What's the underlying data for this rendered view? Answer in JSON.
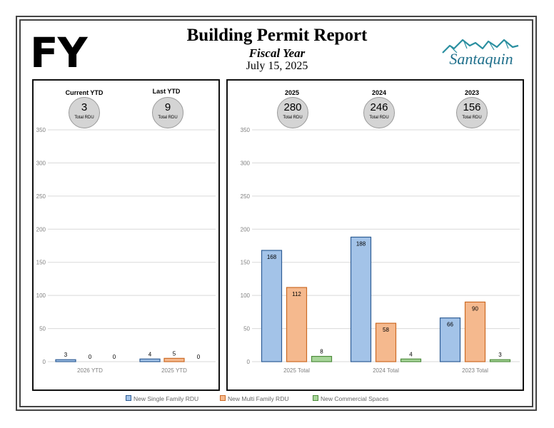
{
  "header": {
    "badge": "FY",
    "title": "Building Permit Report",
    "subtitle": "Fiscal Year",
    "date": "July 15, 2025",
    "logo_text": "Santaquin"
  },
  "summary_left": [
    {
      "label": "Current YTD",
      "value": "3",
      "caption": "Total RDU"
    },
    {
      "label": "Last YTD",
      "value": "9",
      "caption": "Total RDU"
    }
  ],
  "summary_right": [
    {
      "label": "2025",
      "value": "280",
      "caption": "Total RDU"
    },
    {
      "label": "2024",
      "value": "246",
      "caption": "Total RDU"
    },
    {
      "label": "2023",
      "value": "156",
      "caption": "Total RDU"
    }
  ],
  "colors": {
    "single_fill": "#a3c3e8",
    "single_stroke": "#2e5d95",
    "multi_fill": "#f5b98e",
    "multi_stroke": "#cc6a24",
    "commercial_fill": "#a8d69a",
    "commercial_stroke": "#4e8c3c",
    "grid": "#d9d9d9",
    "tick": "#7f7f7f"
  },
  "chart_data": [
    {
      "type": "bar",
      "categories": [
        "2026 YTD",
        "2025 YTD"
      ],
      "series": [
        {
          "name": "New Single Family RDU",
          "values": [
            3,
            4
          ]
        },
        {
          "name": "New Multi Family RDU",
          "values": [
            0,
            5
          ]
        },
        {
          "name": "New Commercial Spaces",
          "values": [
            0,
            0
          ]
        }
      ],
      "ylim": [
        0,
        350
      ],
      "yticks": [
        0,
        50,
        100,
        150,
        200,
        250,
        300,
        350
      ],
      "grid": true
    },
    {
      "type": "bar",
      "categories": [
        "2025 Total",
        "2024 Total",
        "2023 Total"
      ],
      "series": [
        {
          "name": "New Single Family RDU",
          "values": [
            168,
            188,
            66
          ]
        },
        {
          "name": "New Multi Family RDU",
          "values": [
            112,
            58,
            90
          ]
        },
        {
          "name": "New Commercial Spaces",
          "values": [
            8,
            4,
            3
          ]
        }
      ],
      "ylim": [
        0,
        350
      ],
      "yticks": [
        0,
        50,
        100,
        150,
        200,
        250,
        300,
        350
      ],
      "grid": true
    }
  ],
  "legend": {
    "position": "bottom",
    "items": [
      "New Single Family RDU",
      "New Multi Family RDU",
      "New Commercial Spaces"
    ]
  }
}
